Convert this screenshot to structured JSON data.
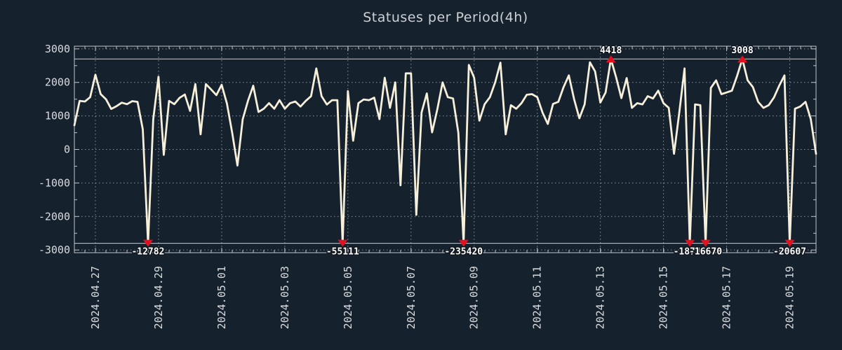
{
  "title": "Statuses per Period(4h)",
  "colors": {
    "background": "#16212e",
    "line": "#f6efda",
    "marker": "#e3101f",
    "grid": "#98a0a8",
    "frame": "#c0c4c8",
    "clip_line": "#c9cdd1",
    "tick_text": "#d9dcdf",
    "title_text": "#ccd1d6",
    "annotation_text": "#ffffff"
  },
  "chart_data": {
    "type": "line",
    "title": "Statuses per Period(4h)",
    "xlabel": "",
    "ylabel": "",
    "x_start": "2024-04-26 08:00",
    "x_interval_hours": 4,
    "ylim": [
      -3000,
      3000
    ],
    "grid": true,
    "legend": false,
    "clip_high": 2700,
    "clip_low": -2800,
    "y_ticks": [
      {
        "v": 3000,
        "label": "3000"
      },
      {
        "v": 2000,
        "label": "2000"
      },
      {
        "v": 1000,
        "label": "1000"
      },
      {
        "v": 0,
        "label": "0"
      },
      {
        "v": -1000,
        "label": "-1000"
      },
      {
        "v": -2000,
        "label": "-2000"
      },
      {
        "v": -3000,
        "label": "-3000"
      }
    ],
    "x_ticks": [
      {
        "index": 4,
        "label": "2024.04.27"
      },
      {
        "index": 16,
        "label": "2024.04.29"
      },
      {
        "index": 28,
        "label": "2024.05.01"
      },
      {
        "index": 40,
        "label": "2024.05.03"
      },
      {
        "index": 52,
        "label": "2024.05.05"
      },
      {
        "index": 64,
        "label": "2024.05.07"
      },
      {
        "index": 76,
        "label": "2024.05.09"
      },
      {
        "index": 88,
        "label": "2024.05.11"
      },
      {
        "index": 100,
        "label": "2024.05.13"
      },
      {
        "index": 112,
        "label": "2024.05.15"
      },
      {
        "index": 124,
        "label": "2024.05.17"
      },
      {
        "index": 136,
        "label": "2024.05.19"
      }
    ],
    "annotations": [
      {
        "index": 14,
        "value": -12782,
        "label": "-12782",
        "direction": "down"
      },
      {
        "index": 51,
        "value": -55111,
        "label": "-55111",
        "direction": "down"
      },
      {
        "index": 74,
        "value": -235420,
        "label": "-235420",
        "direction": "down"
      },
      {
        "index": 102,
        "value": 4418,
        "label": "4418",
        "direction": "up"
      },
      {
        "index": 117,
        "value": -18748,
        "label": "-18748",
        "direction": "down"
      },
      {
        "index": 120,
        "value": -16670,
        "label": "-16670",
        "direction": "down"
      },
      {
        "index": 127,
        "value": 3008,
        "label": "3008",
        "direction": "up"
      },
      {
        "index": 136,
        "value": -20607,
        "label": "-20607",
        "direction": "down"
      }
    ],
    "values": [
      720,
      1450,
      1430,
      1560,
      2230,
      1650,
      1500,
      1210,
      1290,
      1395,
      1350,
      1440,
      1420,
      600,
      -12782,
      900,
      2170,
      -160,
      1450,
      1350,
      1540,
      1640,
      1150,
      1950,
      450,
      1950,
      1790,
      1620,
      1930,
      1370,
      500,
      -480,
      900,
      1450,
      1900,
      1120,
      1215,
      1380,
      1215,
      1470,
      1215,
      1380,
      1430,
      1280,
      1450,
      1590,
      2415,
      1590,
      1340,
      1470,
      1470,
      -55111,
      1740,
      260,
      1380,
      1490,
      1470,
      1545,
      905,
      2140,
      1240,
      2000,
      -1070,
      2270,
      2270,
      -1950,
      1100,
      1670,
      510,
      1200,
      2000,
      1560,
      1520,
      500,
      -235420,
      2520,
      2140,
      860,
      1350,
      1560,
      2000,
      2590,
      450,
      1320,
      1215,
      1380,
      1630,
      1650,
      1560,
      1100,
      760,
      1360,
      1420,
      1860,
      2210,
      1500,
      930,
      1345,
      2600,
      2330,
      1400,
      1700,
      4418,
      2150,
      1530,
      2130,
      1240,
      1380,
      1345,
      1590,
      1520,
      1755,
      1380,
      1240,
      -130,
      1100,
      2415,
      -18748,
      1345,
      1320,
      -16670,
      1835,
      2060,
      1650,
      1700,
      1755,
      2200,
      3008,
      2060,
      1860,
      1420,
      1240,
      1320,
      1550,
      1900,
      2210,
      -20607,
      1215,
      1280,
      1420,
      905,
      -130
    ]
  }
}
